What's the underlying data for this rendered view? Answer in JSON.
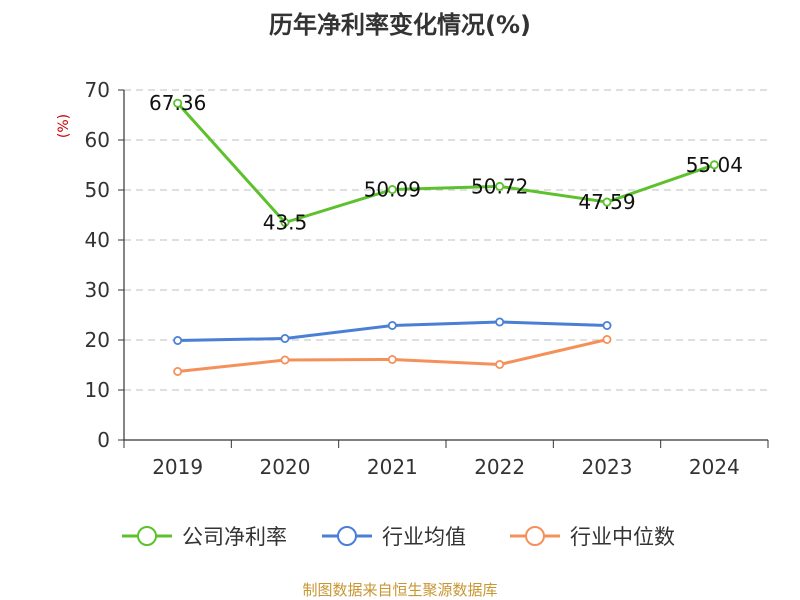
{
  "chart_data": {
    "type": "line",
    "title": "历年净利率变化情况(%)",
    "ylabel": "(%)",
    "xlabel": "",
    "categories": [
      "2019",
      "2020",
      "2021",
      "2022",
      "2023",
      "2024"
    ],
    "ylim": [
      0,
      70
    ],
    "yticks": [
      "0",
      "10",
      "20",
      "30",
      "40",
      "50",
      "60",
      "70"
    ],
    "grid": true,
    "legend_position": "bottom",
    "series": [
      {
        "name": "公司净利率",
        "color": "#5cc12c",
        "values": [
          67.36,
          43.5,
          50.09,
          50.72,
          47.59,
          55.04
        ],
        "labels": [
          "67.36",
          "43.5",
          "50.09",
          "50.72",
          "47.59",
          "55.04"
        ]
      },
      {
        "name": "行业均值",
        "color": "#4a7fd6",
        "values": [
          19.9,
          20.3,
          22.9,
          23.6,
          22.9,
          null
        ]
      },
      {
        "name": "行业中位数",
        "color": "#f5905a",
        "values": [
          13.7,
          16.0,
          16.1,
          15.1,
          20.1,
          null
        ]
      }
    ],
    "source": "制图数据来自恒生聚源数据库"
  }
}
